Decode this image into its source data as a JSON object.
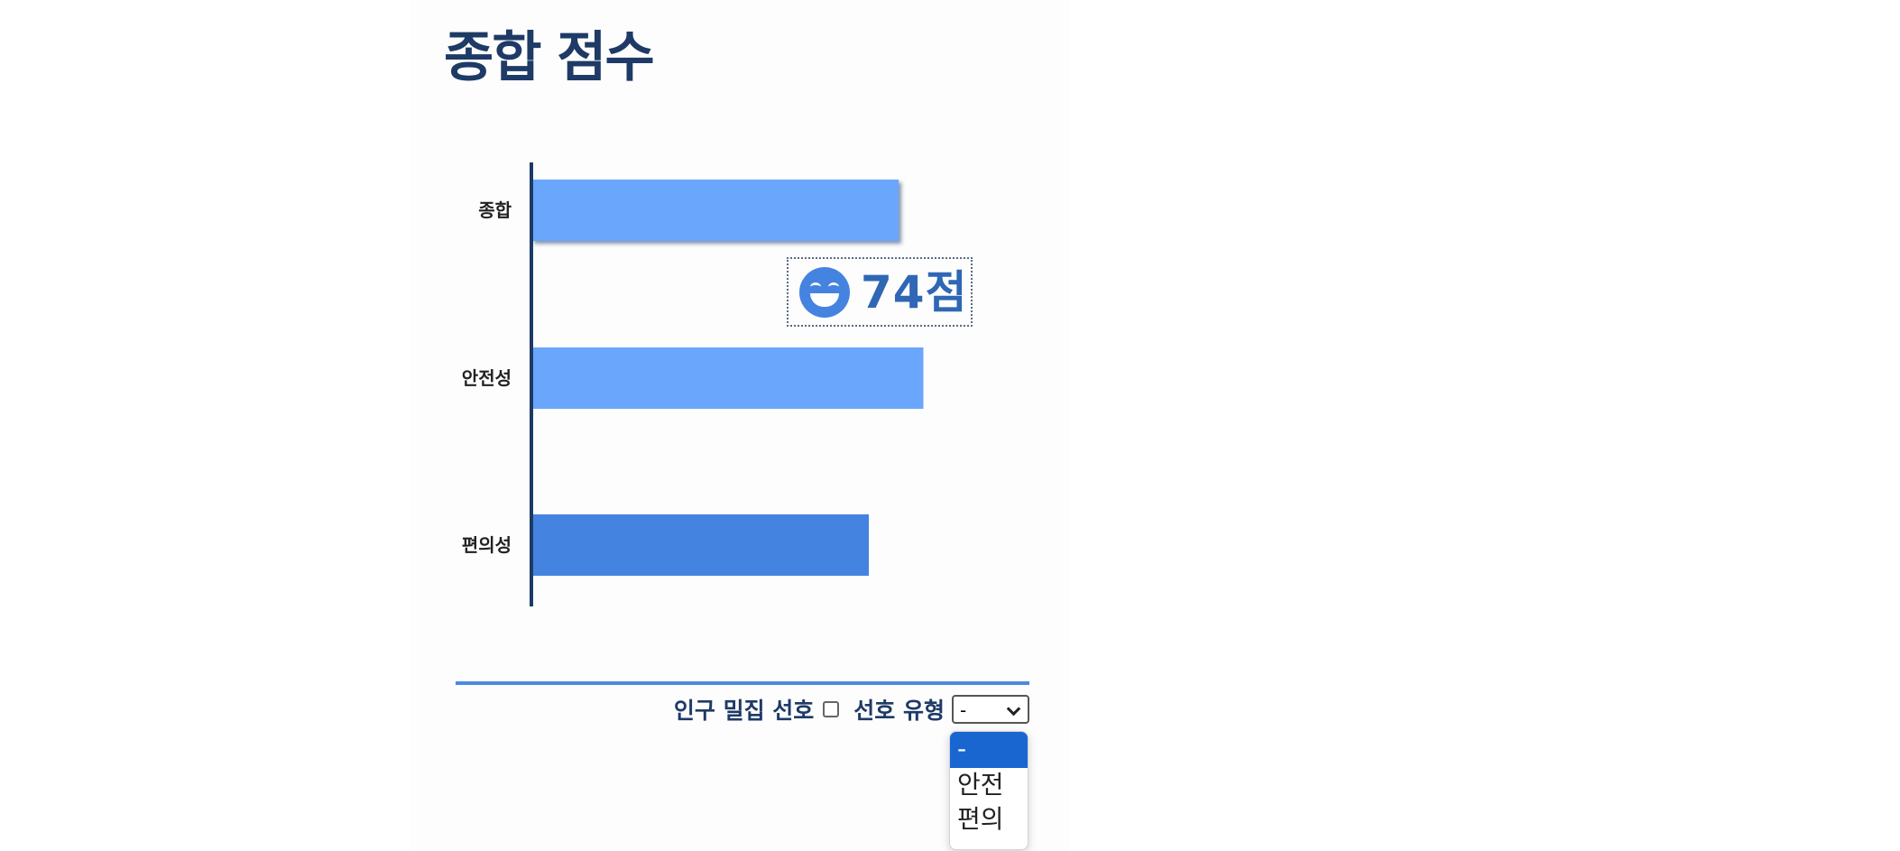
{
  "title": "종합 점수",
  "score": {
    "icon": "grinning-face-icon",
    "text": "74점"
  },
  "chart_data": {
    "type": "bar",
    "orientation": "horizontal",
    "categories": [
      "종합",
      "안전성",
      "편의성"
    ],
    "values": [
      74,
      79,
      68
    ],
    "colors": [
      "#6aa6fb",
      "#6aa6fb",
      "#4583e0"
    ],
    "axis_color": "#1e3a66",
    "grid": false,
    "xlim": [
      0,
      100
    ]
  },
  "controls": {
    "crowd_pref_label": "인구 밀집 선호",
    "crowd_pref_checked": false,
    "type_label": "선호 유형",
    "type_value": "-",
    "type_options": [
      "-",
      "안전",
      "편의"
    ],
    "selected_option_index": 0
  }
}
